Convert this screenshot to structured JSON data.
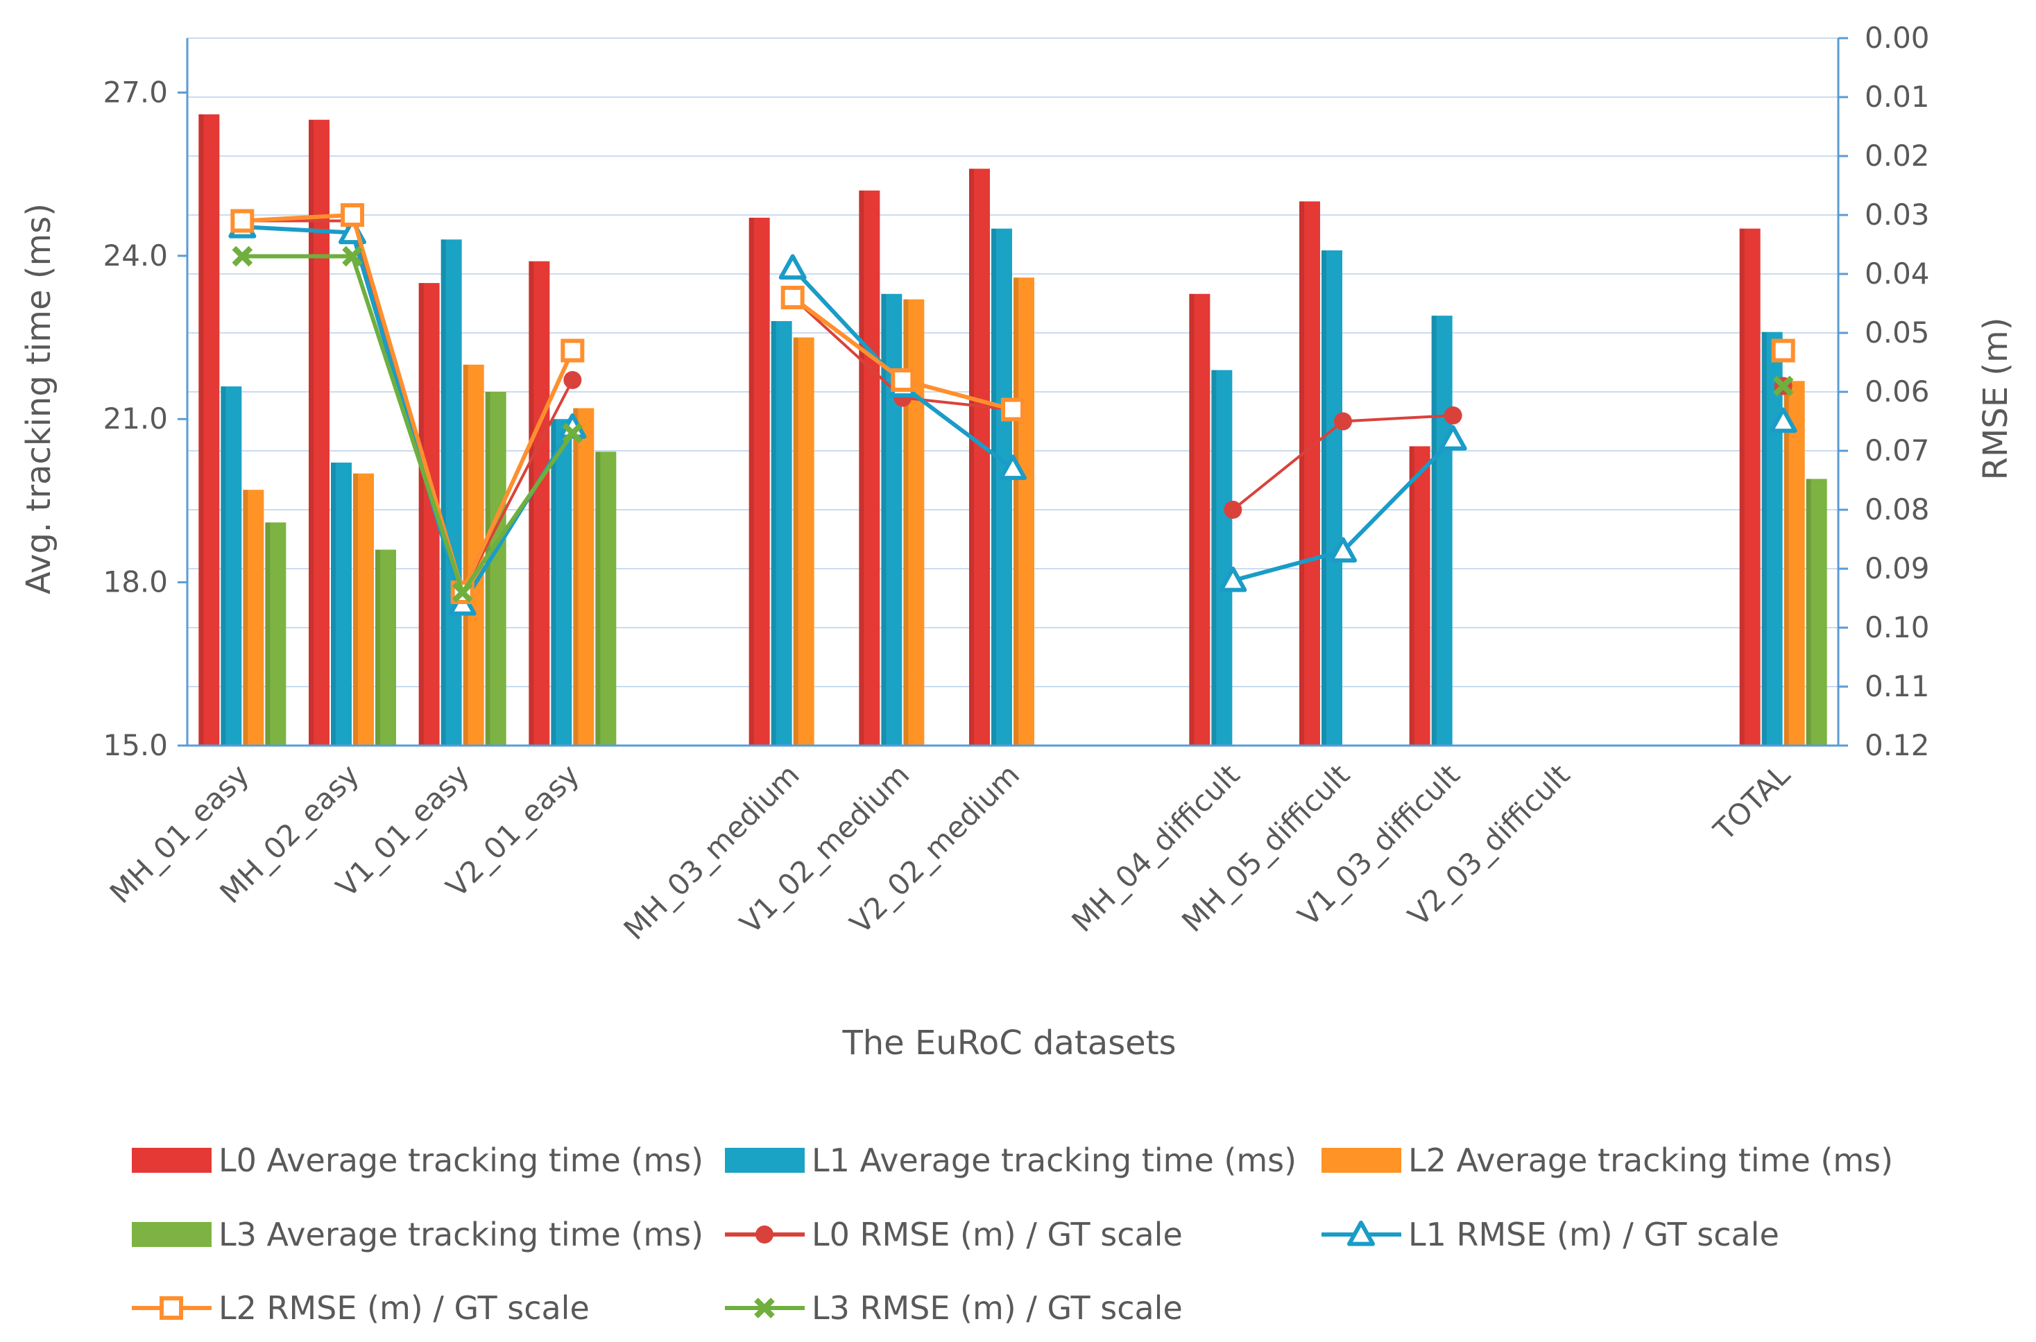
{
  "chart_data": {
    "type": "bar",
    "title": "",
    "xlabel": "The EuRoC datasets",
    "ylabel": "Avg. tracking time (ms)",
    "y2label": "RMSE (m)",
    "ylim": [
      15.0,
      28.0
    ],
    "y_ticks": [
      "15.0",
      "18.0",
      "21.0",
      "24.0",
      "27.0"
    ],
    "y2lim": [
      0.12,
      0.0
    ],
    "y2_inverted": true,
    "y2_ticks": [
      "0.00",
      "0.01",
      "0.02",
      "0.03",
      "0.04",
      "0.05",
      "0.06",
      "0.07",
      "0.08",
      "0.09",
      "0.10",
      "0.11",
      "0.12"
    ],
    "categories": [
      "MH_01_easy",
      "MH_02_easy",
      "V1_01_easy",
      "V2_01_easy",
      "",
      "MH_03_medium",
      "V1_02_medium",
      "V2_02_medium",
      "",
      "MH_04_difficult",
      "MH_05_difficult",
      "V1_03_difficult",
      "V2_03_difficult",
      "",
      "TOTAL"
    ],
    "bar_series": [
      {
        "name": "L0 Average tracking time (ms)",
        "color": "#E53935",
        "values": [
          26.6,
          26.5,
          23.5,
          23.9,
          null,
          24.7,
          25.2,
          25.6,
          null,
          23.3,
          25.0,
          20.5,
          null,
          null,
          24.5
        ]
      },
      {
        "name": "L1 Average tracking time (ms)",
        "color": "#1BA3C6",
        "values": [
          21.6,
          20.2,
          24.3,
          21.0,
          null,
          22.8,
          23.3,
          24.5,
          null,
          21.9,
          24.1,
          22.9,
          null,
          null,
          22.6
        ]
      },
      {
        "name": "L2 Average tracking time (ms)",
        "color": "#FF9326",
        "values": [
          19.7,
          20.0,
          22.0,
          21.2,
          null,
          22.5,
          23.2,
          23.6,
          null,
          null,
          null,
          null,
          null,
          null,
          21.7
        ]
      },
      {
        "name": "L3 Average tracking time (ms)",
        "color": "#7CB342",
        "values": [
          19.1,
          18.6,
          21.5,
          20.4,
          null,
          null,
          null,
          null,
          null,
          null,
          null,
          null,
          null,
          null,
          19.9
        ]
      }
    ],
    "line_series": [
      {
        "name": "L0 RMSE (m) / GT scale",
        "color": "#D9423B",
        "marker": "circle",
        "values": [
          0.031,
          0.031,
          0.094,
          0.058,
          null,
          0.044,
          0.061,
          0.063,
          null,
          0.08,
          0.065,
          0.064,
          null,
          null,
          0.059
        ]
      },
      {
        "name": "L1 RMSE (m) / GT scale",
        "color": "#1A9CC7",
        "marker": "triangle",
        "values": [
          0.032,
          0.033,
          0.096,
          0.066,
          null,
          0.039,
          0.059,
          0.073,
          null,
          0.092,
          0.087,
          0.068,
          null,
          null,
          0.065
        ]
      },
      {
        "name": "L2 RMSE (m) / GT scale",
        "color": "#FF8F2E",
        "marker": "square",
        "values": [
          0.031,
          0.03,
          0.094,
          0.053,
          null,
          0.044,
          0.058,
          0.063,
          null,
          null,
          null,
          null,
          null,
          null,
          0.053
        ]
      },
      {
        "name": "L3 RMSE (m) / GT scale",
        "color": "#6FAF3E",
        "marker": "x",
        "values": [
          0.037,
          0.037,
          0.094,
          0.067,
          null,
          null,
          null,
          null,
          null,
          null,
          null,
          null,
          null,
          null,
          0.059
        ]
      }
    ],
    "grid": true,
    "legend_position": "bottom"
  }
}
